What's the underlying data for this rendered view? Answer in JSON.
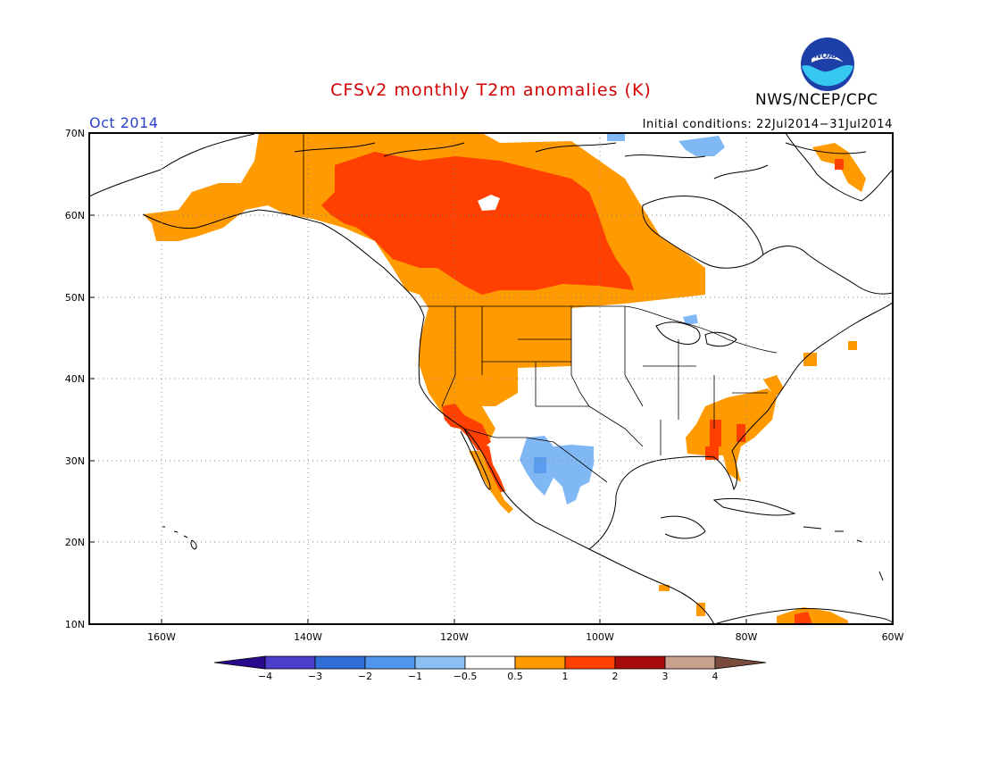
{
  "title": "CFSv2 monthly T2m anomalies (K)",
  "agency": "NWS/NCEP/CPC",
  "logo_text": "NOAA",
  "valid_month": "Oct 2014",
  "initial_conditions": "Initial conditions: 22Jul2014−31Jul2014",
  "lat_ticks": [
    "70N",
    "60N",
    "50N",
    "40N",
    "30N",
    "20N",
    "10N"
  ],
  "lon_ticks": [
    "160W",
    "140W",
    "120W",
    "100W",
    "80W",
    "60W"
  ],
  "colorbar": {
    "labels": [
      "−4",
      "−3",
      "−2",
      "−1",
      "−0.5",
      "0.5",
      "1",
      "2",
      "3",
      "4"
    ],
    "colors": [
      "#2a0a8c",
      "#4b3fc9",
      "#2f6fd6",
      "#4f96ec",
      "#8cc0f5",
      "#ffffff",
      "#ff9a00",
      "#ff4000",
      "#a80a0a",
      "#c8a08c",
      "#7a4a3c"
    ]
  },
  "map_colors": {
    "warm1": "#ff9a00",
    "warm2": "#ff4000",
    "cool1": "#80b8f5",
    "cool2": "#5a9cee"
  }
}
